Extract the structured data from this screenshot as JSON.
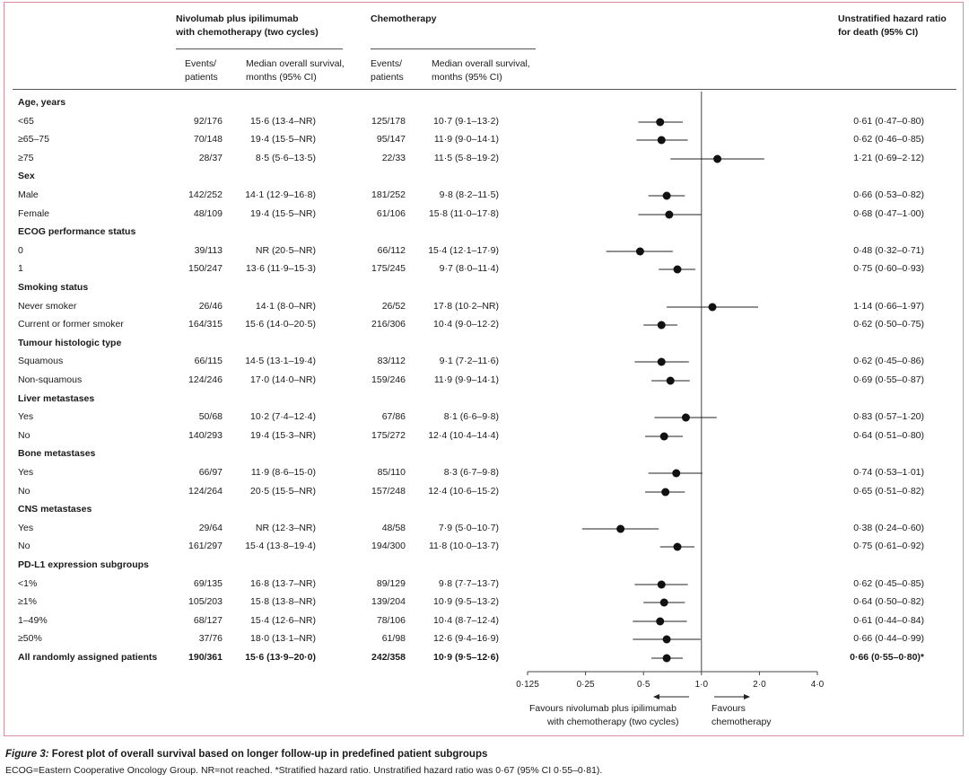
{
  "header": {
    "group1": "Nivolumab plus ipilimumab",
    "group1_line2": "with chemotherapy (two cycles)",
    "group2": "Chemotherapy",
    "hr_title": "Unstratified hazard ratio",
    "hr_title_line2": "for death (95% CI)",
    "events_label": "Events/",
    "events_label_line2": "patients",
    "median_label": "Median overall survival,",
    "median_label_line2": "months (95% CI)"
  },
  "rows": [
    {
      "type": "cat",
      "label": "Age, years"
    },
    {
      "type": "row",
      "label": "<65",
      "e1": "92/176",
      "m1": "15·6 (13·4–NR)",
      "e2": "125/178",
      "m2": "10·7 (9·1–13·2)",
      "hrText": "0·61 (0·47–0·80)",
      "hr": 0.61,
      "lo": 0.47,
      "hi": 0.8
    },
    {
      "type": "row",
      "label": "≥65–75",
      "e1": "70/148",
      "m1": "19·4 (15·5–NR)",
      "e2": "95/147",
      "m2": "11·9 (9·0–14·1)",
      "hrText": "0·62 (0·46–0·85)",
      "hr": 0.62,
      "lo": 0.46,
      "hi": 0.85
    },
    {
      "type": "row",
      "label": "≥75",
      "e1": "28/37",
      "m1": "8·5 (5·6–13·5)",
      "e2": "22/33",
      "m2": "11·5 (5·8–19·2)",
      "hrText": "1·21 (0·69–2·12)",
      "hr": 1.21,
      "lo": 0.69,
      "hi": 2.12
    },
    {
      "type": "cat",
      "label": "Sex"
    },
    {
      "type": "row",
      "label": "Male",
      "e1": "142/252",
      "m1": "14·1 (12·9–16·8)",
      "e2": "181/252",
      "m2": "9·8 (8·2–11·5)",
      "hrText": "0·66 (0·53–0·82)",
      "hr": 0.66,
      "lo": 0.53,
      "hi": 0.82
    },
    {
      "type": "row",
      "label": "Female",
      "e1": "48/109",
      "m1": "19·4 (15·5–NR)",
      "e2": "61/106",
      "m2": "15·8 (11·0–17·8)",
      "hrText": "0·68 (0·47–1·00)",
      "hr": 0.68,
      "lo": 0.47,
      "hi": 1.0
    },
    {
      "type": "cat",
      "label": "ECOG performance status"
    },
    {
      "type": "row",
      "label": "0",
      "e1": "39/113",
      "m1": "NR (20·5–NR)",
      "e2": "66/112",
      "m2": "15·4 (12·1–17·9)",
      "hrText": "0·48 (0·32–0·71)",
      "hr": 0.48,
      "lo": 0.32,
      "hi": 0.71
    },
    {
      "type": "row",
      "label": "1",
      "e1": "150/247",
      "m1": "13·6 (11·9–15·3)",
      "e2": "175/245",
      "m2": "9·7 (8·0–11·4)",
      "hrText": "0·75 (0·60–0·93)",
      "hr": 0.75,
      "lo": 0.6,
      "hi": 0.93
    },
    {
      "type": "cat",
      "label": "Smoking status"
    },
    {
      "type": "row",
      "label": "Never smoker",
      "e1": "26/46",
      "m1": "14·1 (8·0–NR)",
      "e2": "26/52",
      "m2": "17·8 (10·2–NR)",
      "hrText": "1·14 (0·66–1·97)",
      "hr": 1.14,
      "lo": 0.66,
      "hi": 1.97
    },
    {
      "type": "row",
      "label": "Current or former smoker",
      "e1": "164/315",
      "m1": "15·6 (14·0–20·5)",
      "e2": "216/306",
      "m2": "10·4 (9·0–12·2)",
      "hrText": "0·62 (0·50–0·75)",
      "hr": 0.62,
      "lo": 0.5,
      "hi": 0.75
    },
    {
      "type": "cat",
      "label": "Tumour histologic type"
    },
    {
      "type": "row",
      "label": "Squamous",
      "e1": "66/115",
      "m1": "14·5 (13·1–19·4)",
      "e2": "83/112",
      "m2": "9·1 (7·2–11·6)",
      "hrText": "0·62 (0·45–0·86)",
      "hr": 0.62,
      "lo": 0.45,
      "hi": 0.86
    },
    {
      "type": "row",
      "label": "Non-squamous",
      "e1": "124/246",
      "m1": "17·0 (14·0–NR)",
      "e2": "159/246",
      "m2": "11·9 (9·9–14·1)",
      "hrText": "0·69 (0·55–0·87)",
      "hr": 0.69,
      "lo": 0.55,
      "hi": 0.87
    },
    {
      "type": "cat",
      "label": "Liver metastases"
    },
    {
      "type": "row",
      "label": "Yes",
      "e1": "50/68",
      "m1": "10·2 (7·4–12·4)",
      "e2": "67/86",
      "m2": "8·1 (6·6–9·8)",
      "hrText": "0·83 (0·57–1·20)",
      "hr": 0.83,
      "lo": 0.57,
      "hi": 1.2
    },
    {
      "type": "row",
      "label": "No",
      "e1": "140/293",
      "m1": "19·4 (15·3–NR)",
      "e2": "175/272",
      "m2": "12·4 (10·4–14·4)",
      "hrText": "0·64 (0·51–0·80)",
      "hr": 0.64,
      "lo": 0.51,
      "hi": 0.8
    },
    {
      "type": "cat",
      "label": "Bone metastases"
    },
    {
      "type": "row",
      "label": "Yes",
      "e1": "66/97",
      "m1": "11·9 (8·6–15·0)",
      "e2": "85/110",
      "m2": "8·3 (6·7–9·8)",
      "hrText": "0·74 (0·53–1·01)",
      "hr": 0.74,
      "lo": 0.53,
      "hi": 1.01
    },
    {
      "type": "row",
      "label": "No",
      "e1": "124/264",
      "m1": "20·5 (15·5–NR)",
      "e2": "157/248",
      "m2": "12·4 (10·6–15·2)",
      "hrText": "0·65 (0·51–0·82)",
      "hr": 0.65,
      "lo": 0.51,
      "hi": 0.82
    },
    {
      "type": "cat",
      "label": "CNS metastases"
    },
    {
      "type": "row",
      "label": "Yes",
      "e1": "29/64",
      "m1": "NR (12·3–NR)",
      "e2": "48/58",
      "m2": "7·9 (5·0–10·7)",
      "hrText": "0·38 (0·24–0·60)",
      "hr": 0.38,
      "lo": 0.24,
      "hi": 0.6
    },
    {
      "type": "row",
      "label": "No",
      "e1": "161/297",
      "m1": "15·4 (13·8–19·4)",
      "e2": "194/300",
      "m2": "11·8 (10·0–13·7)",
      "hrText": "0·75 (0·61–0·92)",
      "hr": 0.75,
      "lo": 0.61,
      "hi": 0.92
    },
    {
      "type": "cat",
      "label": "PD-L1 expression subgroups"
    },
    {
      "type": "row",
      "label": "<1%",
      "e1": "69/135",
      "m1": "16·8 (13·7–NR)",
      "e2": "89/129",
      "m2": "9·8 (7·7–13·7)",
      "hrText": "0·62 (0·45–0·85)",
      "hr": 0.62,
      "lo": 0.45,
      "hi": 0.85
    },
    {
      "type": "row",
      "label": "≥1%",
      "e1": "105/203",
      "m1": "15·8 (13·8–NR)",
      "e2": "139/204",
      "m2": "10·9 (9·5–13·2)",
      "hrText": "0·64 (0·50–0·82)",
      "hr": 0.64,
      "lo": 0.5,
      "hi": 0.82
    },
    {
      "type": "row",
      "label": "1–49%",
      "e1": "68/127",
      "m1": "15·4 (12·6–NR)",
      "e2": "78/106",
      "m2": "10·4 (8·7–12·4)",
      "hrText": "0·61 (0·44–0·84)",
      "hr": 0.61,
      "lo": 0.44,
      "hi": 0.84
    },
    {
      "type": "row",
      "label": "≥50%",
      "e1": "37/76",
      "m1": "18·0 (13·1–NR)",
      "e2": "61/98",
      "m2": "12·6 (9·4–16·9)",
      "hrText": "0·66 (0·44–0·99)",
      "hr": 0.66,
      "lo": 0.44,
      "hi": 0.99
    },
    {
      "type": "total",
      "label": "All randomly assigned patients",
      "e1": "190/361",
      "m1": "15·6 (13·9–20·0)",
      "e2": "242/358",
      "m2": "10·9 (9·5–12·6)",
      "hrText": "0·66 (0·55–0·80)*",
      "hr": 0.66,
      "lo": 0.55,
      "hi": 0.8
    }
  ],
  "chart_data": {
    "type": "scatter",
    "xscale": "log2",
    "xlim": [
      0.125,
      4.0
    ],
    "xticks": [
      0.125,
      0.25,
      0.5,
      1.0,
      2.0,
      4.0
    ],
    "xtick_labels": [
      "0·125",
      "0·25",
      "0·5",
      "1·0",
      "2·0",
      "4·0"
    ],
    "reference_line": 1.0,
    "favour_left": "Favours nivolumab plus ipilimumab",
    "favour_left_line2": "with chemotherapy (two cycles)",
    "favour_right": "Favours",
    "favour_right_line2": "chemotherapy"
  },
  "caption": {
    "fig": "Figure 3:",
    "title": "Forest plot of overall survival based on longer follow-up in predefined patient subgroups",
    "footnote": "ECOG=Eastern Cooperative Oncology Group. NR=not reached. *Stratified hazard ratio. Unstratified hazard ratio was 0·67 (95% CI 0·55–0·81)."
  }
}
